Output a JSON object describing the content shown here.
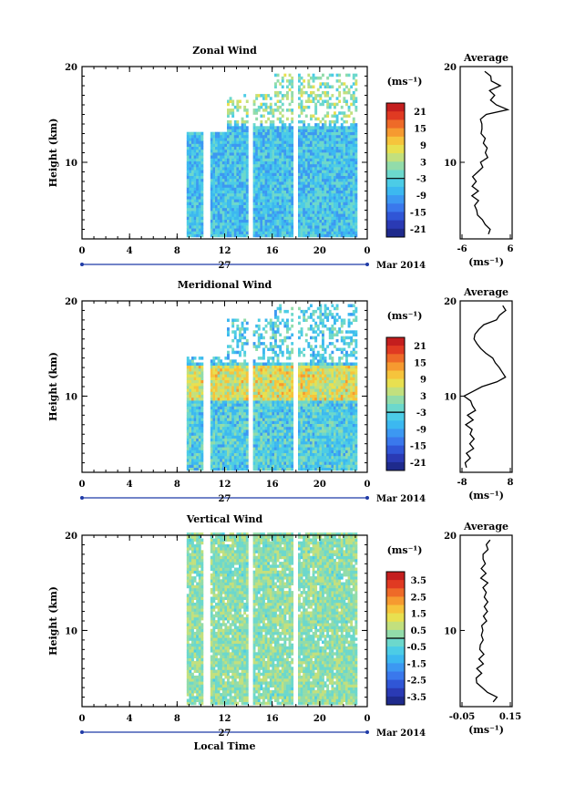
{
  "figure": {
    "xlabel": "Local Time",
    "date_label": "Mar 2014",
    "day_label": "27",
    "colorbar_unit": "(ms⁻¹)",
    "profile_unit": "(ms⁻¹)"
  },
  "colormap": [
    "#1e2a8c",
    "#2a3ab4",
    "#3056d6",
    "#3a78ec",
    "#3c98f2",
    "#3cb8f0",
    "#4ccce6",
    "#6cd8cc",
    "#92dcaa",
    "#c2e07e",
    "#e8e050",
    "#f6c43c",
    "#f69a30",
    "#ee6a28",
    "#e03a22",
    "#c41e1e"
  ],
  "chart_data": [
    {
      "type": "heatmap",
      "title": "Zonal Wind",
      "ylabel": "Height (km)",
      "xlim": [
        0,
        24
      ],
      "ylim": [
        2,
        20
      ],
      "x_ticks": [
        "0",
        "4",
        "8",
        "12",
        "16",
        "20",
        "0"
      ],
      "y_ticks": [
        "20",
        "10"
      ],
      "colorbar": {
        "range": [
          -24,
          24
        ],
        "ticks": [
          "21",
          "15",
          "9",
          "3",
          "-3",
          "-9",
          "-15",
          "-21"
        ]
      },
      "profile": {
        "title": "Average",
        "xlim": [
          -6,
          6
        ],
        "x_ticks": [
          "-6",
          "6"
        ],
        "y_ticks": [
          "20",
          "10"
        ],
        "height": [
          2.5,
          3,
          3.5,
          4,
          4.5,
          5,
          5.5,
          6,
          6.5,
          7,
          7.5,
          8,
          8.5,
          9,
          9.5,
          10,
          10.5,
          11,
          11.5,
          12,
          12.5,
          13,
          13.5,
          14,
          14.5,
          15,
          15.5,
          16,
          16.5,
          17,
          17.5,
          18,
          18.5,
          19,
          19.5
        ],
        "value": [
          0.5,
          1,
          0,
          -1,
          -2,
          -2,
          -3,
          -2,
          -3,
          -2,
          -3,
          -2,
          -3,
          -2,
          -1,
          -1,
          0.5,
          -0.5,
          0,
          -1,
          0,
          -1,
          -1,
          -1,
          -1,
          0,
          5,
          2,
          1,
          2,
          1,
          3,
          1,
          1,
          0
        ]
      },
      "data_x_range": [
        8.8,
        23
      ],
      "data_y_top": [
        13,
        17,
        19
      ],
      "gaps": [
        [
          10,
          10.6
        ],
        [
          13.8,
          14.2
        ],
        [
          17.7,
          18.1
        ]
      ],
      "value_center": -6
    },
    {
      "type": "heatmap",
      "title": "Meridional Wind",
      "ylabel": "Height (km)",
      "xlim": [
        0,
        24
      ],
      "ylim": [
        2,
        20
      ],
      "x_ticks": [
        "0",
        "4",
        "8",
        "12",
        "16",
        "20",
        "0"
      ],
      "y_ticks": [
        "20",
        "10"
      ],
      "colorbar": {
        "range": [
          -24,
          24
        ],
        "ticks": [
          "21",
          "15",
          "9",
          "3",
          "-3",
          "-9",
          "-15",
          "-21"
        ]
      },
      "profile": {
        "title": "Average",
        "xlim": [
          -8,
          8
        ],
        "x_ticks": [
          "-8",
          "8"
        ],
        "y_ticks": [
          "20",
          "10"
        ],
        "height": [
          2.5,
          3,
          3.5,
          4,
          4.5,
          5,
          5.5,
          6,
          6.5,
          7,
          7.5,
          8,
          8.5,
          9,
          9.5,
          10,
          10.5,
          11,
          11.5,
          12,
          12.5,
          13,
          13.5,
          14,
          14.5,
          15,
          15.5,
          16,
          16.5,
          17,
          17.5,
          18,
          18.5,
          19,
          19.5
        ],
        "value": [
          -6,
          -6,
          -5,
          -6,
          -4,
          -5,
          -4,
          -5,
          -4,
          -6,
          -4,
          -6,
          -3,
          -4,
          -5,
          -7,
          -4,
          -1,
          3,
          6,
          5,
          4,
          3,
          2,
          0,
          -2,
          -3,
          -4,
          -3,
          -2,
          -1,
          3,
          4,
          6,
          5
        ]
      },
      "data_x_range": [
        8.8,
        23
      ],
      "data_y_top": [
        14,
        18,
        19.5
      ],
      "gaps": [
        [
          10,
          10.6
        ],
        [
          13.8,
          14.2
        ],
        [
          17.7,
          18.1
        ]
      ],
      "value_center": -4
    },
    {
      "type": "heatmap",
      "title": "Vertical Wind",
      "ylabel": "Height (km)",
      "xlim": [
        0,
        24
      ],
      "ylim": [
        2,
        20
      ],
      "x_ticks": [
        "0",
        "4",
        "8",
        "12",
        "16",
        "20",
        "0"
      ],
      "y_ticks": [
        "20",
        "10"
      ],
      "colorbar": {
        "range": [
          -4,
          4
        ],
        "ticks": [
          "3.5",
          "2.5",
          "1.5",
          "0.5",
          "-0.5",
          "-1.5",
          "-2.5",
          "-3.5"
        ]
      },
      "profile": {
        "title": "Average",
        "xlim": [
          -0.1,
          0.2
        ],
        "x_ticks": [
          "-0.05",
          "0.15"
        ],
        "y_ticks": [
          "20",
          "10"
        ],
        "height": [
          2.5,
          3,
          3.5,
          4,
          4.5,
          5,
          5.5,
          6,
          6.5,
          7,
          7.5,
          8,
          8.5,
          9,
          9.5,
          10,
          10.5,
          11,
          11.5,
          12,
          12.5,
          13,
          13.5,
          14,
          14.5,
          15,
          15.5,
          16,
          16.5,
          17,
          17.5,
          18,
          18.5,
          19,
          19.5
        ],
        "value": [
          0.09,
          0.12,
          0.06,
          0.02,
          0.0,
          0.0,
          0.02,
          0.0,
          0.03,
          0.01,
          0.04,
          0.02,
          0.01,
          0.03,
          0.02,
          0.04,
          0.03,
          0.05,
          0.04,
          0.06,
          0.03,
          0.06,
          0.04,
          0.05,
          0.03,
          0.06,
          0.02,
          0.04,
          0.03,
          0.05,
          0.03,
          0.04,
          0.06,
          0.05,
          0.07
        ]
      },
      "data_x_range": [
        8.8,
        23
      ],
      "data_y_top": [
        20,
        20,
        20
      ],
      "gaps": [
        [
          10,
          10.6
        ],
        [
          13.8,
          14.2
        ],
        [
          17.7,
          18.1
        ]
      ],
      "value_center": 0.2
    }
  ]
}
